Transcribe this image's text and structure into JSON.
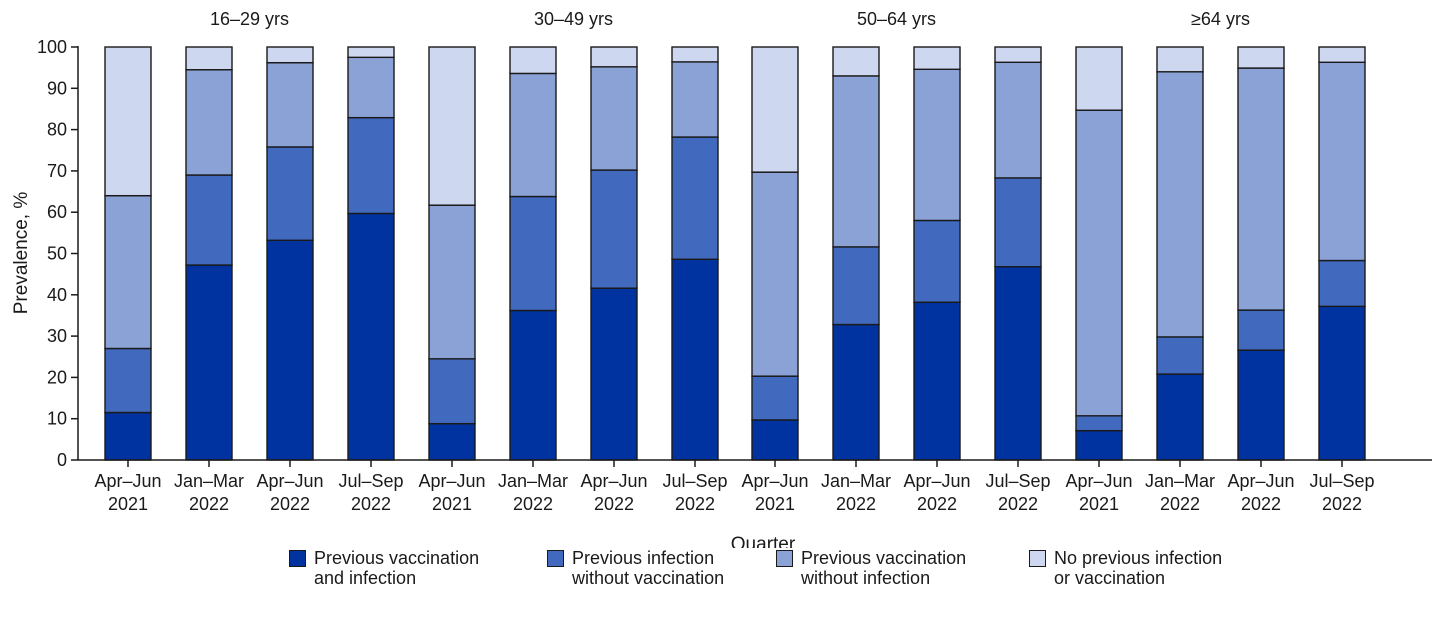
{
  "chart_data": {
    "type": "bar",
    "stacked": true,
    "ylabel": "Prevalence, %",
    "xlabel": "Quarter",
    "ylim": [
      0,
      100
    ],
    "yticks": [
      0,
      10,
      20,
      30,
      40,
      50,
      60,
      70,
      80,
      90,
      100
    ],
    "legend_position": "bottom",
    "series": [
      {
        "name": "Previous vaccination\nand infection",
        "color": "#0033a0"
      },
      {
        "name": "Previous infection\nwithout vaccination",
        "color": "#4169bd"
      },
      {
        "name": "Previous vaccination\nwithout infection",
        "color": "#8aa2d6"
      },
      {
        "name": "No previous infection\nor vaccination",
        "color": "#cdd7ef"
      }
    ],
    "groups": [
      {
        "name": "16–29 yrs",
        "bars": [
          {
            "label": "Apr–Jun\n2021",
            "values": [
              11.5,
              15.5,
              37,
              36
            ]
          },
          {
            "label": "Jan–Mar\n2022",
            "values": [
              47.2,
              21.8,
              25.5,
              5.5
            ]
          },
          {
            "label": "Apr–Jun\n2022",
            "values": [
              53.2,
              22.6,
              20.4,
              3.8
            ]
          },
          {
            "label": "Jul–Sep\n2022",
            "values": [
              59.7,
              23.2,
              14.6,
              2.5
            ]
          }
        ]
      },
      {
        "name": "30–49 yrs",
        "bars": [
          {
            "label": "Apr–Jun\n2021",
            "values": [
              8.8,
              15.7,
              37.2,
              38.3
            ]
          },
          {
            "label": "Jan–Mar\n2022",
            "values": [
              36.2,
              27.6,
              29.8,
              6.4
            ]
          },
          {
            "label": "Apr–Jun\n2022",
            "values": [
              41.6,
              28.6,
              25,
              4.8
            ]
          },
          {
            "label": "Jul–Sep\n2022",
            "values": [
              48.6,
              29.6,
              18.2,
              3.6
            ]
          }
        ]
      },
      {
        "name": "50–64 yrs",
        "bars": [
          {
            "label": "Apr–Jun\n2021",
            "values": [
              9.7,
              10.6,
              49.4,
              30.3
            ]
          },
          {
            "label": "Jan–Mar\n2022",
            "values": [
              32.8,
              18.8,
              41.4,
              7
            ]
          },
          {
            "label": "Apr–Jun\n2022",
            "values": [
              38.2,
              19.8,
              36.6,
              5.4
            ]
          },
          {
            "label": "Jul–Sep\n2022",
            "values": [
              46.8,
              21.5,
              28,
              3.7
            ]
          }
        ]
      },
      {
        "name": "≥64 yrs",
        "bars": [
          {
            "label": "Apr–Jun\n2021",
            "values": [
              7.1,
              3.6,
              74,
              15.3
            ]
          },
          {
            "label": "Jan–Mar\n2022",
            "values": [
              20.8,
              9,
              64.2,
              6
            ]
          },
          {
            "label": "Apr–Jun\n2022",
            "values": [
              26.6,
              9.7,
              58.6,
              5.1
            ]
          },
          {
            "label": "Jul–Sep\n2022",
            "values": [
              37.2,
              11.1,
              48,
              3.7
            ]
          }
        ]
      }
    ]
  }
}
